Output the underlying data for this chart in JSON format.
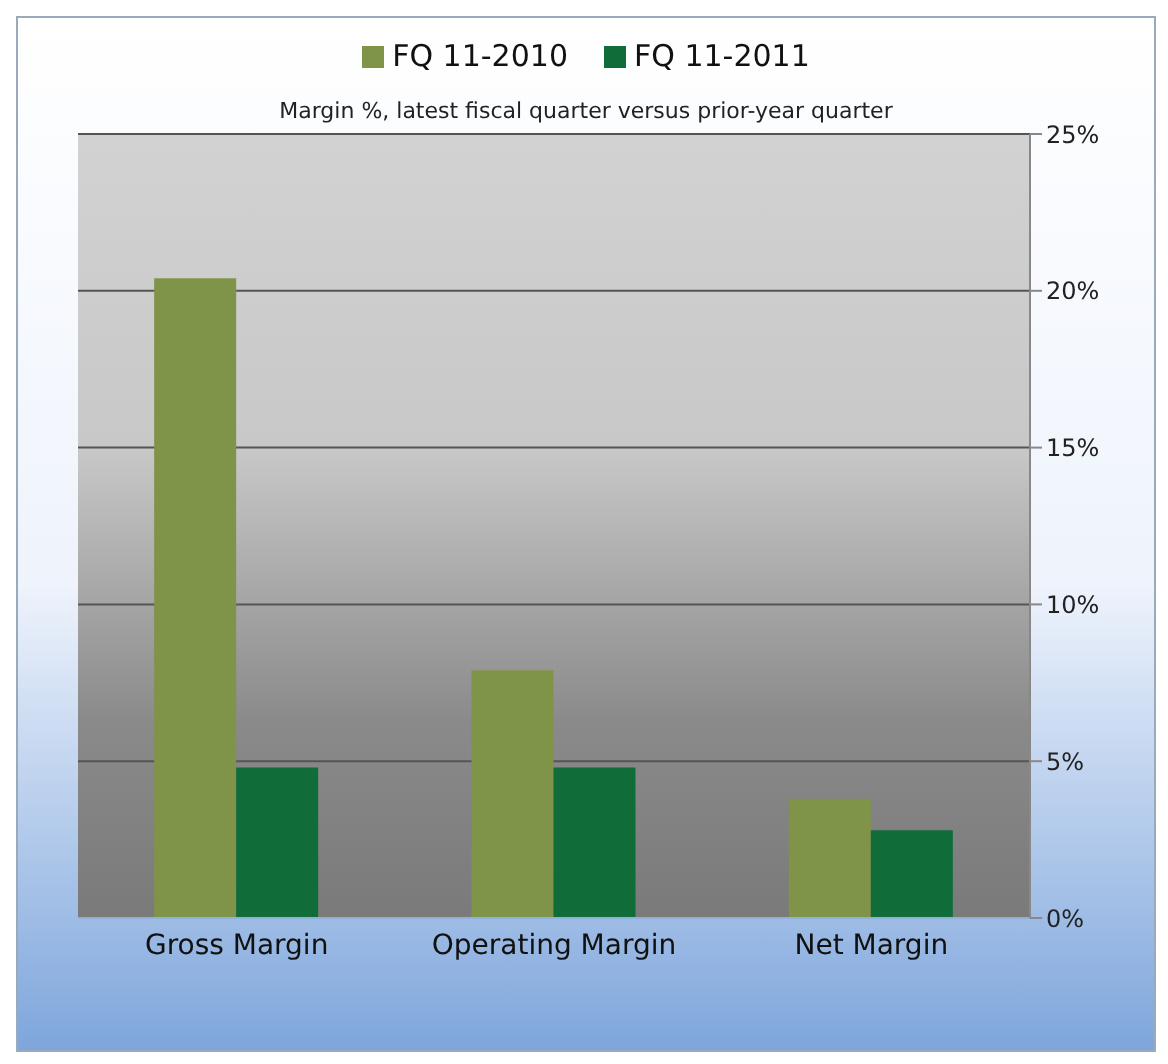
{
  "chart_data": {
    "type": "bar",
    "subtitle": "Margin %,  latest fiscal quarter versus prior-year quarter",
    "categories": [
      "Gross Margin",
      "Operating Margin",
      "Net Margin"
    ],
    "series": [
      {
        "name": "FQ 11-2010",
        "color": "#7f9448",
        "values": [
          20.4,
          7.9,
          3.8
        ]
      },
      {
        "name": "FQ 11-2011",
        "color": "#106d3a",
        "values": [
          4.8,
          4.8,
          2.8
        ]
      }
    ],
    "ylim": [
      0,
      25
    ],
    "yticks": [
      {
        "value": 0,
        "label": "0%"
      },
      {
        "value": 5,
        "label": "5%"
      },
      {
        "value": 10,
        "label": "10%"
      },
      {
        "value": 15,
        "label": "15%"
      },
      {
        "value": 20,
        "label": "20%"
      },
      {
        "value": 25,
        "label": "25%"
      }
    ],
    "grid": "y",
    "legend": "top"
  }
}
